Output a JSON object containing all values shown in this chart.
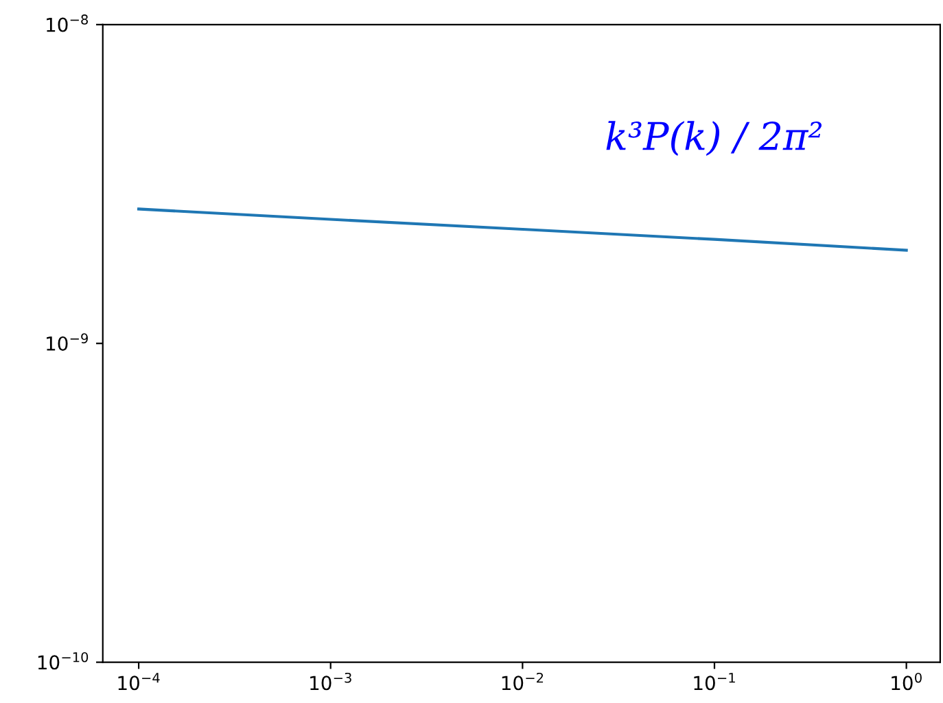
{
  "chart_data": {
    "type": "line",
    "log": "xy",
    "x": [
      0.0001,
      0.001,
      0.01,
      0.1,
      1
    ],
    "series": [
      {
        "color": "#1f77b4",
        "values": [
          2.64e-09,
          2.45e-09,
          2.28e-09,
          2.12e-09,
          1.96e-09
        ]
      }
    ],
    "xlim": [
      6.5e-05,
      1.5
    ],
    "ylim": [
      1e-10,
      1e-08
    ],
    "xticks": [
      {
        "value": 0.0001,
        "label": "10$^{−4}$"
      },
      {
        "value": 0.001,
        "label": "10$^{−3}$"
      },
      {
        "value": 0.01,
        "label": "10$^{−2}$"
      },
      {
        "value": 0.1,
        "label": "10$^{−1}$"
      },
      {
        "value": 1,
        "label": "10$^{0}$"
      }
    ],
    "yticks": [
      {
        "value": 1e-10,
        "label": "10$^{−10}$"
      },
      {
        "value": 1e-09,
        "label": "10$^{−9}$"
      },
      {
        "value": 1e-08,
        "label": "10$^{−8}$"
      }
    ],
    "annotations": [
      "k³P(k) / 2π²"
    ],
    "grid": false,
    "legend": false,
    "marker": "none",
    "line_style": "solid"
  }
}
